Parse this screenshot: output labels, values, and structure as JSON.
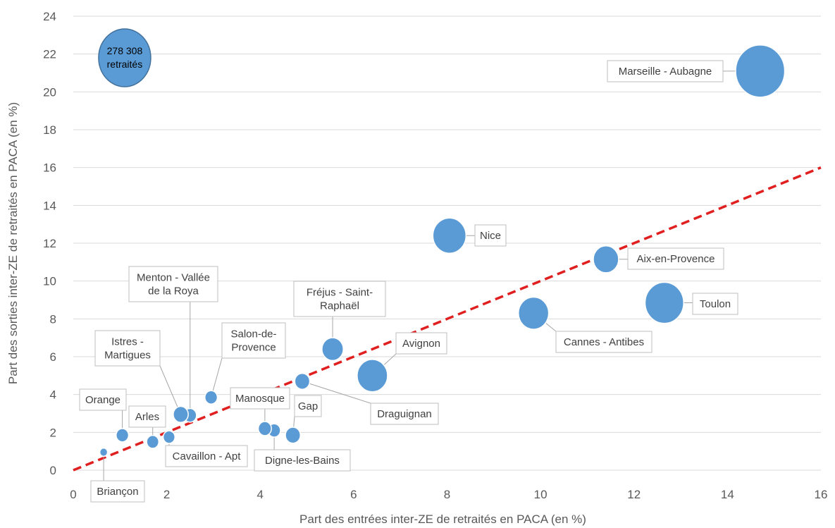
{
  "chart_data": {
    "type": "scatter",
    "xlabel": "Part des entrées inter-ZE de retraités en PACA (en %)",
    "ylabel": "Part des sorties inter-ZE de retraités en PACA (en %)",
    "xlim": [
      0,
      16
    ],
    "ylim": [
      0,
      24
    ],
    "x_ticks": [
      "0",
      "2",
      "4",
      "6",
      "8",
      "10",
      "12",
      "14",
      "16"
    ],
    "y_ticks": [
      "0",
      "2",
      "4",
      "6",
      "8",
      "10",
      "12",
      "14",
      "16",
      "18",
      "20",
      "22",
      "24"
    ],
    "grid": "horizontal",
    "bubble_color": "#5b9bd5",
    "trend_line": {
      "points": [
        [
          0,
          0
        ],
        [
          16,
          16
        ]
      ],
      "color": "#e02020",
      "style": "dashed"
    },
    "size_legend": {
      "lines": [
        "278 308",
        "retraités"
      ],
      "value": 278308,
      "x": 1.1,
      "y": 21.8
    },
    "points": [
      {
        "name": "Marseille - Aubagne",
        "x": 14.7,
        "y": 21.1,
        "size": 278308
      },
      {
        "name": "Nice",
        "x": 8.05,
        "y": 12.4,
        "size": 127000
      },
      {
        "name": "Aix-en-Provence",
        "x": 11.4,
        "y": 11.15,
        "size": 74000
      },
      {
        "name": "Toulon",
        "x": 12.65,
        "y": 8.85,
        "size": 172000
      },
      {
        "name": "Cannes - Antibes",
        "x": 9.85,
        "y": 8.3,
        "size": 106000
      },
      {
        "name": "Avignon",
        "x": 6.4,
        "y": 5.0,
        "size": 107000
      },
      {
        "name": "Fréjus - Saint-Raphaël",
        "x": 5.55,
        "y": 6.4,
        "size": 53000
      },
      {
        "name": "Draguignan",
        "x": 4.9,
        "y": 4.7,
        "size": 26000
      },
      {
        "name": "Gap",
        "x": 4.7,
        "y": 1.85,
        "size": 26000
      },
      {
        "name": "Digne-les-Bains",
        "x": 4.3,
        "y": 2.1,
        "size": 18000
      },
      {
        "name": "Manosque",
        "x": 4.1,
        "y": 2.2,
        "size": 20000
      },
      {
        "name": "Salon-de-Provence",
        "x": 2.95,
        "y": 3.85,
        "size": 18000
      },
      {
        "name": "Menton - Vallée de la Roya",
        "x": 2.5,
        "y": 2.9,
        "size": 19000
      },
      {
        "name": "Istres - Martigues",
        "x": 2.3,
        "y": 2.95,
        "size": 26000
      },
      {
        "name": "Cavaillon - Apt",
        "x": 2.05,
        "y": 1.75,
        "size": 16000
      },
      {
        "name": "Arles",
        "x": 1.7,
        "y": 1.5,
        "size": 17000
      },
      {
        "name": "Orange",
        "x": 1.05,
        "y": 1.85,
        "size": 18000
      },
      {
        "name": "Briançon",
        "x": 0.65,
        "y": 0.95,
        "size": 7000
      }
    ]
  },
  "labels": [
    {
      "lines": [
        "Marseille - Aubagne"
      ]
    },
    {
      "lines": [
        "Nice"
      ]
    },
    {
      "lines": [
        "Aix-en-Provence"
      ]
    },
    {
      "lines": [
        "Toulon"
      ]
    },
    {
      "lines": [
        "Cannes - Antibes"
      ]
    },
    {
      "lines": [
        "Avignon"
      ]
    },
    {
      "lines": [
        "Fréjus - Saint-",
        "Raphaël"
      ]
    },
    {
      "lines": [
        "Draguignan"
      ]
    },
    {
      "lines": [
        "Gap"
      ]
    },
    {
      "lines": [
        "Digne-les-Bains"
      ]
    },
    {
      "lines": [
        "Manosque"
      ]
    },
    {
      "lines": [
        "Salon-de-",
        "Provence"
      ]
    },
    {
      "lines": [
        "Menton  - Vallée",
        "de la Roya"
      ]
    },
    {
      "lines": [
        "Istres -",
        "Martigues"
      ]
    },
    {
      "lines": [
        "Cavaillon - Apt"
      ]
    },
    {
      "lines": [
        "Arles"
      ]
    },
    {
      "lines": [
        "Orange"
      ]
    },
    {
      "lines": [
        "Briançon"
      ]
    }
  ]
}
